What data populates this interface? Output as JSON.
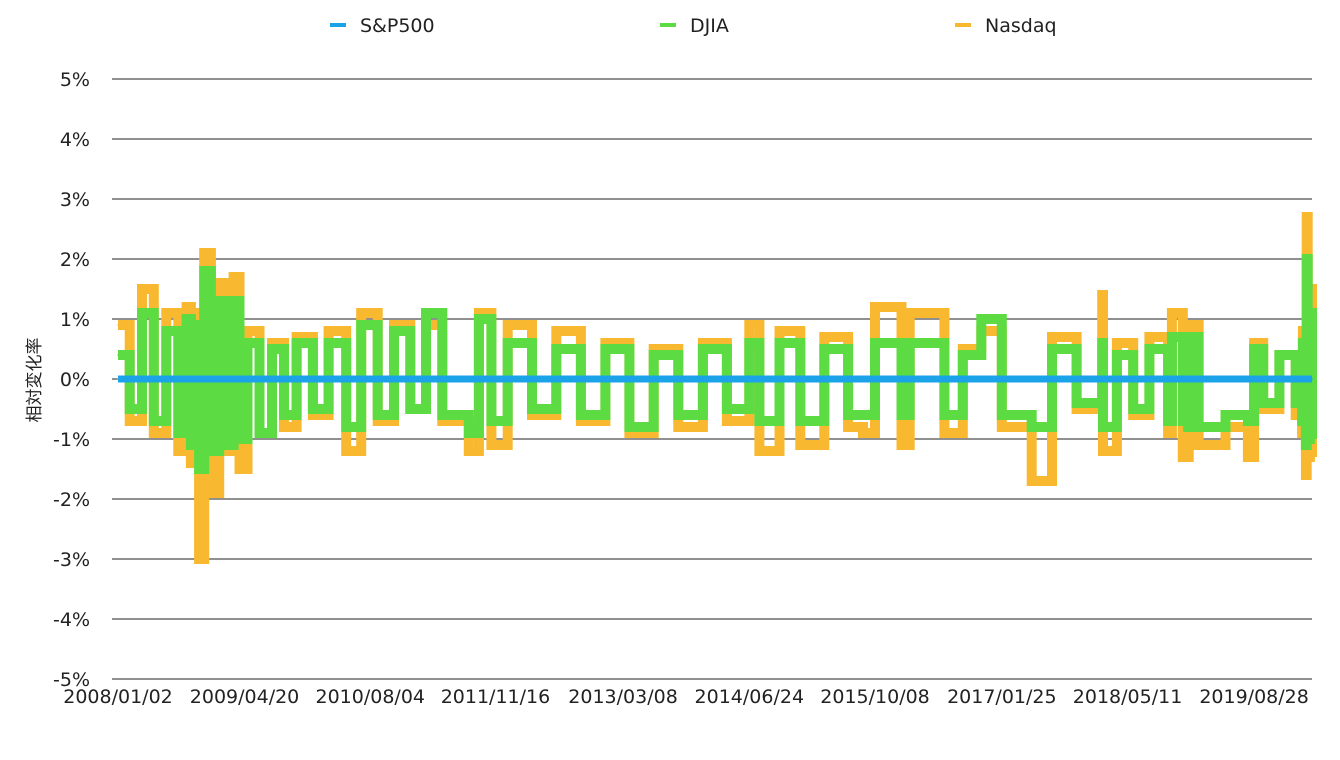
{
  "chart_data": {
    "type": "line",
    "title": "",
    "xlabel": "",
    "ylabel": "相対変化率",
    "ylim": [
      -0.05,
      0.05
    ],
    "y_ticks": [
      {
        "value": 0.05,
        "label": "5%"
      },
      {
        "value": 0.04,
        "label": "4%"
      },
      {
        "value": 0.03,
        "label": "3%"
      },
      {
        "value": 0.02,
        "label": "2%"
      },
      {
        "value": 0.01,
        "label": "1%"
      },
      {
        "value": 0.0,
        "label": "0%"
      },
      {
        "value": -0.01,
        "label": "-1%"
      },
      {
        "value": -0.02,
        "label": "-2%"
      },
      {
        "value": -0.03,
        "label": "-3%"
      },
      {
        "value": -0.04,
        "label": "-4%"
      },
      {
        "value": -0.05,
        "label": "-5%"
      }
    ],
    "x_range": [
      "2008/01/02",
      "2020/04/01"
    ],
    "x_tick_labels": [
      "2008/01/02",
      "2009/04/20",
      "2010/08/04",
      "2011/11/16",
      "2013/03/08",
      "2014/06/24",
      "2015/10/08",
      "2017/01/25",
      "2018/05/11",
      "2019/08/28"
    ],
    "grid": true,
    "legend_position": "top",
    "legend": [
      {
        "name": "S&P500",
        "color": "#1aa3e8"
      },
      {
        "name": "DJIA",
        "color": "#5cdb42"
      },
      {
        "name": "Nasdaq",
        "color": "#f8b830"
      }
    ],
    "series": [
      {
        "name": "Nasdaq",
        "color": "#f8b830",
        "x": [
          "2008/01/02",
          "2008/02/15",
          "2008/04/01",
          "2008/05/15",
          "2008/07/01",
          "2008/08/15",
          "2008/09/15",
          "2008/10/01",
          "2008/10/15",
          "2008/11/01",
          "2008/11/20",
          "2008/12/15",
          "2009/01/15",
          "2009/02/15",
          "2009/03/10",
          "2009/04/01",
          "2009/05/01",
          "2009/06/15",
          "2009/08/01",
          "2009/09/15",
          "2009/11/01",
          "2010/01/01",
          "2010/03/01",
          "2010/05/06",
          "2010/07/01",
          "2010/09/01",
          "2010/11/01",
          "2011/01/01",
          "2011/03/01",
          "2011/05/01",
          "2011/08/08",
          "2011/09/15",
          "2011/11/01",
          "2012/01/01",
          "2012/04/01",
          "2012/07/01",
          "2012/10/01",
          "2013/01/01",
          "2013/04/01",
          "2013/07/01",
          "2013/10/01",
          "2014/01/01",
          "2014/04/01",
          "2014/06/24",
          "2014/08/01",
          "2014/10/15",
          "2015/01/01",
          "2015/04/01",
          "2015/06/29",
          "2015/08/24",
          "2015/10/08",
          "2016/01/15",
          "2016/02/15",
          "2016/06/24",
          "2016/09/01",
          "2016/11/09",
          "2017/01/25",
          "2017/05/17",
          "2017/08/01",
          "2017/11/01",
          "2018/02/05",
          "2018/02/08",
          "2018/04/01",
          "2018/06/01",
          "2018/08/01",
          "2018/10/10",
          "2018/10/24",
          "2018/12/04",
          "2018/12/24",
          "2018/12/26",
          "2019/02/01",
          "2019/05/13",
          "2019/08/05",
          "2019/08/28",
          "2019/10/01",
          "2019/12/01",
          "2020/01/31",
          "2020/02/24",
          "2020/02/27",
          "2020/03/09",
          "2020/03/12",
          "2020/03/16",
          "2020/03/24",
          "2020/04/01"
        ],
        "values": [
          0.009,
          -0.007,
          0.015,
          -0.009,
          0.011,
          -0.012,
          0.012,
          -0.014,
          0.011,
          -0.03,
          0.021,
          -0.019,
          0.016,
          -0.012,
          0.017,
          -0.015,
          0.008,
          -0.009,
          0.006,
          -0.008,
          0.007,
          -0.006,
          0.008,
          -0.012,
          0.011,
          -0.007,
          0.009,
          -0.005,
          0.009,
          -0.007,
          -0.012,
          0.011,
          -0.011,
          0.009,
          -0.006,
          0.008,
          -0.007,
          0.006,
          -0.009,
          0.005,
          -0.008,
          0.006,
          -0.007,
          0.009,
          -0.012,
          0.008,
          -0.011,
          0.007,
          -0.008,
          -0.009,
          0.012,
          -0.011,
          0.011,
          -0.009,
          0.005,
          0.008,
          -0.008,
          -0.017,
          0.007,
          -0.005,
          0.014,
          -0.012,
          0.006,
          -0.006,
          0.007,
          -0.009,
          0.011,
          -0.013,
          -0.013,
          0.009,
          -0.011,
          -0.008,
          -0.013,
          0.006,
          -0.005,
          0.004,
          -0.006,
          -0.009,
          0.008,
          -0.016,
          0.027,
          -0.013,
          0.015,
          -0.013
        ]
      },
      {
        "name": "DJIA",
        "color": "#5cdb42",
        "x": [
          "2008/01/02",
          "2008/02/15",
          "2008/04/01",
          "2008/05/15",
          "2008/07/01",
          "2008/08/15",
          "2008/09/15",
          "2008/10/01",
          "2008/10/15",
          "2008/11/01",
          "2008/11/20",
          "2008/12/15",
          "2009/01/15",
          "2009/02/15",
          "2009/03/10",
          "2009/04/01",
          "2009/05/01",
          "2009/06/15",
          "2009/08/01",
          "2009/09/15",
          "2009/11/01",
          "2010/01/01",
          "2010/03/01",
          "2010/05/06",
          "2010/07/01",
          "2010/09/01",
          "2010/11/01",
          "2011/01/01",
          "2011/03/01",
          "2011/05/01",
          "2011/08/08",
          "2011/09/15",
          "2011/11/01",
          "2012/01/01",
          "2012/04/01",
          "2012/07/01",
          "2012/10/01",
          "2013/01/01",
          "2013/04/01",
          "2013/07/01",
          "2013/10/01",
          "2014/01/01",
          "2014/04/01",
          "2014/06/24",
          "2014/08/01",
          "2014/10/15",
          "2015/01/01",
          "2015/04/01",
          "2015/06/29",
          "2015/08/24",
          "2015/10/08",
          "2016/01/15",
          "2016/02/15",
          "2016/06/24",
          "2016/09/01",
          "2016/11/09",
          "2017/01/25",
          "2017/05/17",
          "2017/08/01",
          "2017/11/01",
          "2018/02/05",
          "2018/02/08",
          "2018/04/01",
          "2018/06/01",
          "2018/08/01",
          "2018/10/10",
          "2018/10/24",
          "2018/12/04",
          "2018/12/24",
          "2018/12/26",
          "2019/02/01",
          "2019/05/13",
          "2019/08/05",
          "2019/08/28",
          "2019/10/01",
          "2019/12/01",
          "2020/01/31",
          "2020/02/24",
          "2020/02/27",
          "2020/03/09",
          "2020/03/12",
          "2020/03/16",
          "2020/03/24",
          "2020/04/01"
        ],
        "values": [
          0.004,
          -0.005,
          0.011,
          -0.007,
          0.008,
          -0.009,
          0.01,
          -0.011,
          0.009,
          -0.015,
          0.018,
          -0.012,
          0.013,
          -0.011,
          0.013,
          -0.01,
          0.006,
          -0.009,
          0.005,
          -0.006,
          0.006,
          -0.005,
          0.006,
          -0.008,
          0.009,
          -0.006,
          0.008,
          -0.005,
          0.011,
          -0.006,
          -0.009,
          0.01,
          -0.007,
          0.006,
          -0.005,
          0.005,
          -0.006,
          0.005,
          -0.008,
          0.004,
          -0.006,
          0.005,
          -0.005,
          0.006,
          -0.007,
          0.006,
          -0.007,
          0.005,
          -0.006,
          -0.006,
          0.006,
          -0.006,
          0.006,
          -0.006,
          0.004,
          0.01,
          -0.006,
          -0.008,
          0.005,
          -0.004,
          0.006,
          -0.008,
          0.004,
          -0.005,
          0.005,
          -0.007,
          0.007,
          -0.007,
          -0.008,
          0.007,
          -0.008,
          -0.006,
          -0.007,
          0.005,
          -0.004,
          0.004,
          -0.004,
          -0.007,
          0.006,
          -0.011,
          0.02,
          -0.01,
          0.011,
          -0.01
        ]
      },
      {
        "name": "S&P500",
        "color": "#1aa3e8",
        "x": [
          "2008/01/02",
          "2020/04/01"
        ],
        "values": [
          0.0,
          0.0
        ]
      }
    ]
  }
}
